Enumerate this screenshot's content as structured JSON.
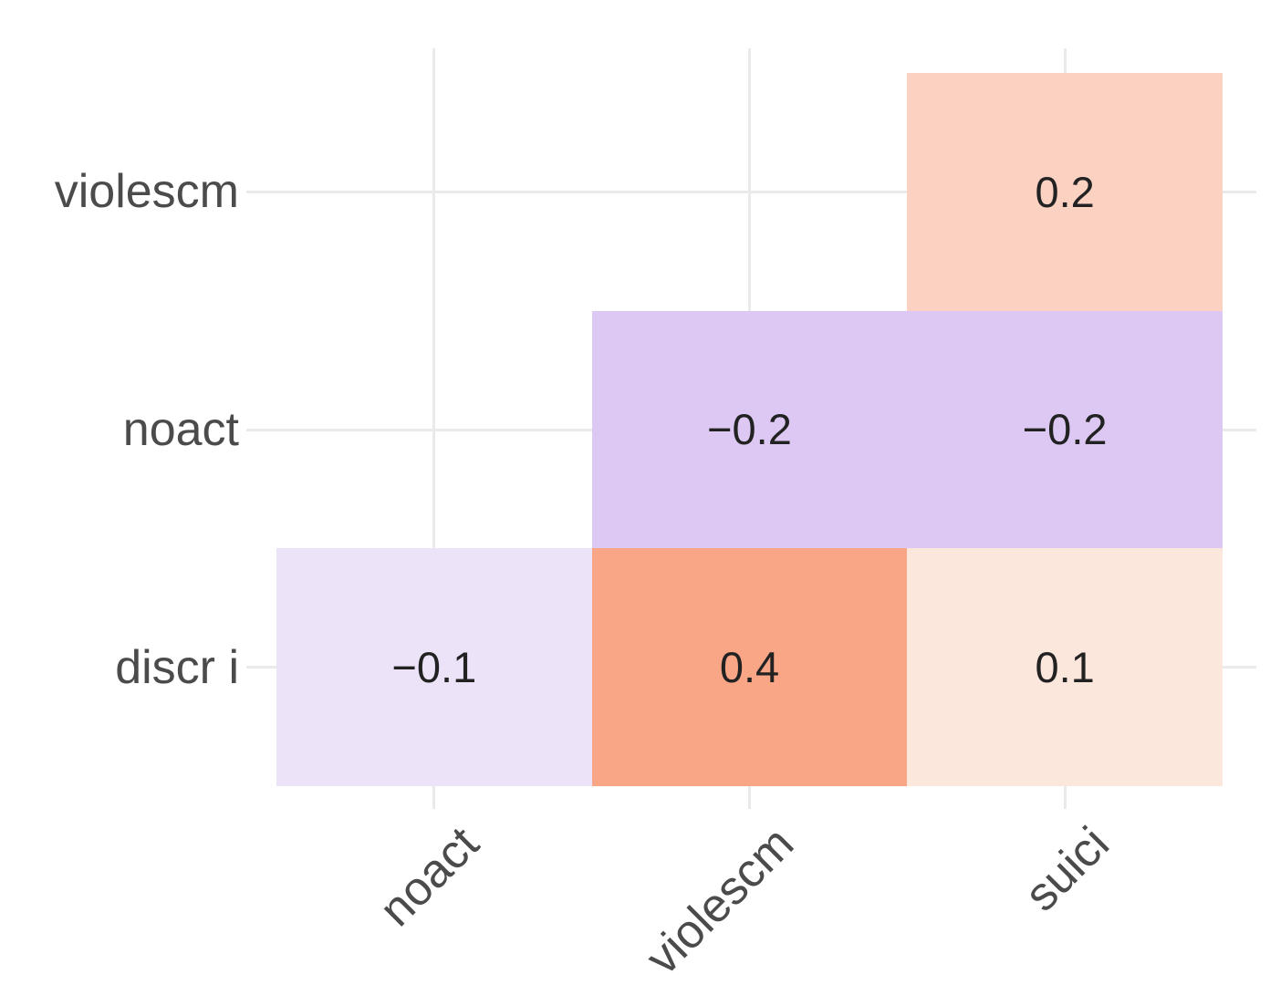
{
  "chart_data": {
    "type": "heatmap",
    "title": "",
    "subtitle": "",
    "x_axis_label": "",
    "y_axis_label": "",
    "x_categories": [
      "noact",
      "violescm",
      "suici"
    ],
    "y_categories": [
      "violescm",
      "noact",
      "discr i"
    ],
    "cells": [
      {
        "x": "suici",
        "y": "violescm",
        "value": 0.2,
        "label": "0.2",
        "fill": "#fbd1c2"
      },
      {
        "x": "violescm",
        "y": "noact",
        "value": -0.2,
        "label": "−0.2",
        "fill": "#dcc8f2"
      },
      {
        "x": "suici",
        "y": "noact",
        "value": -0.2,
        "label": "−0.2",
        "fill": "#dcc8f2"
      },
      {
        "x": "noact",
        "y": "discr i",
        "value": -0.1,
        "label": "−0.1",
        "fill": "#ece3f8"
      },
      {
        "x": "violescm",
        "y": "discr i",
        "value": 0.4,
        "label": "0.4",
        "fill": "#f8a685"
      },
      {
        "x": "suici",
        "y": "discr i",
        "value": 0.1,
        "label": "0.1",
        "fill": "#fce7dc"
      }
    ],
    "layout_hints": {
      "triangle": "lower",
      "grid": "on",
      "legend": "none",
      "x_tick_angle": -45
    },
    "colors": {
      "background": "#ffffff",
      "gridline": "#eaeaea",
      "axis_label_text": "#4b4b4b",
      "cell_value_text": "#222222",
      "positive_accent": "#f8a685",
      "negative_accent": "#dcc8f2"
    }
  }
}
